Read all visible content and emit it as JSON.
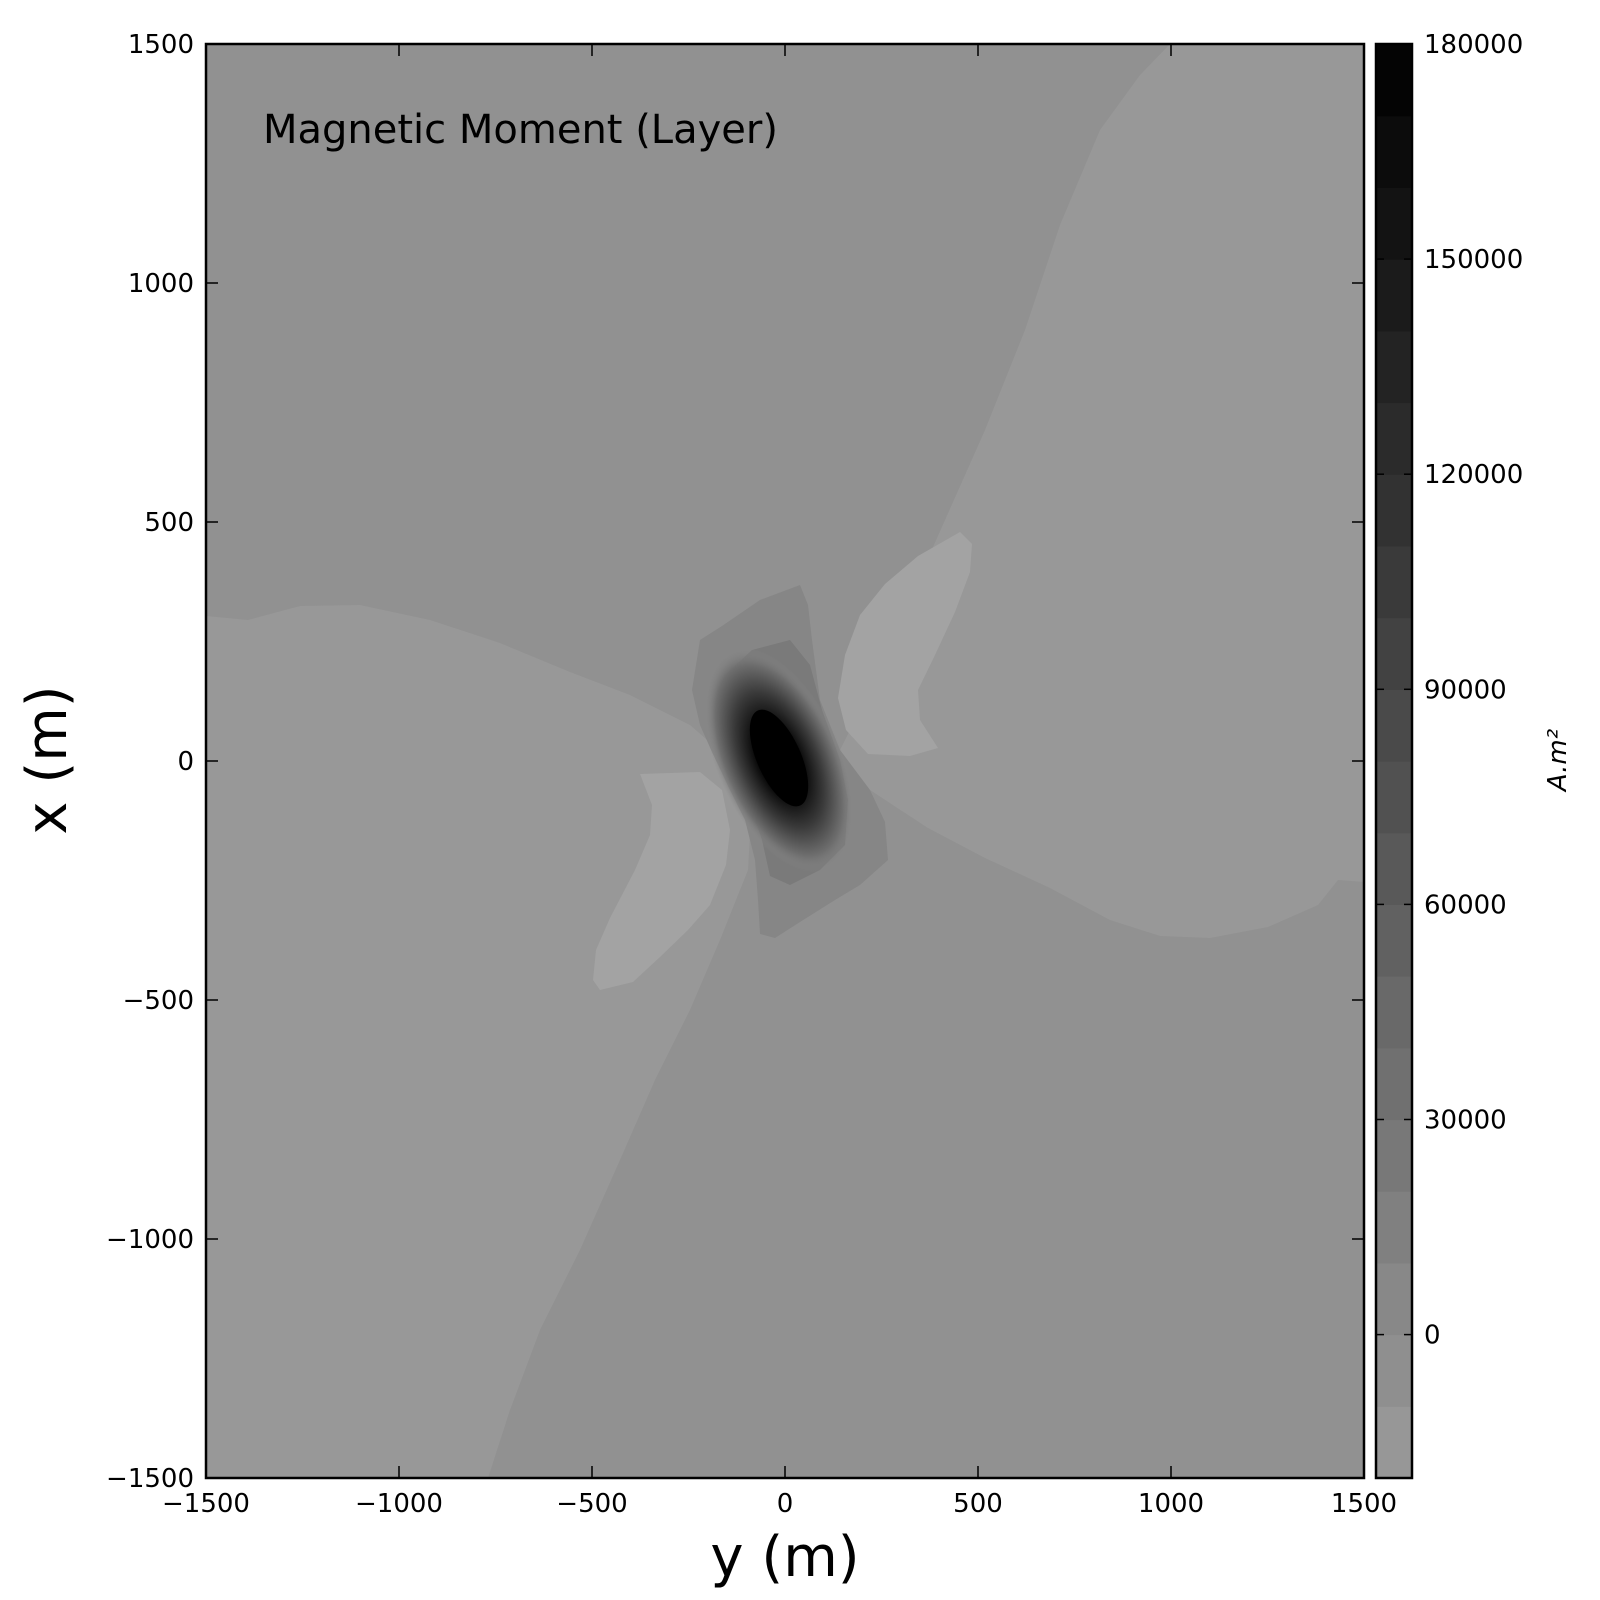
{
  "chart_data": {
    "type": "heatmap",
    "title": "Magnetic Moment (Layer)",
    "xlabel": "y (m)",
    "ylabel": "x (m)",
    "xlim": [
      -1500,
      1500
    ],
    "ylim": [
      -1500,
      1500
    ],
    "xticks": [
      "−1500",
      "−1000",
      "−500",
      "0",
      "500",
      "1000",
      "1500"
    ],
    "xtick_values": [
      -1500,
      -1000,
      -500,
      0,
      500,
      1000,
      1500
    ],
    "yticks": [
      "1500",
      "1000",
      "500",
      "0",
      "−500",
      "−1000",
      "−1500"
    ],
    "ytick_values": [
      1500,
      1000,
      500,
      0,
      -500,
      -1000,
      -1500
    ],
    "colorbar": {
      "label": "A.m²",
      "min": -20000,
      "max": 180000,
      "levels": 20,
      "ticks": [
        "180000",
        "150000",
        "120000",
        "90000",
        "60000",
        "30000",
        "0"
      ],
      "tick_values": [
        180000,
        150000,
        120000,
        90000,
        60000,
        30000,
        0
      ]
    },
    "colormap": "Greys",
    "peak": {
      "y": 0,
      "x": 0,
      "value": 180000
    },
    "background_value": -10000,
    "regions": [
      {
        "name": "background",
        "approx_value": -10000
      },
      {
        "name": "lighter-lobes",
        "approx_value": -15000
      },
      {
        "name": "minimum-lobes",
        "approx_value": -20000
      },
      {
        "name": "positive-dipole-core",
        "approx_value": 180000
      }
    ],
    "grid": false
  }
}
